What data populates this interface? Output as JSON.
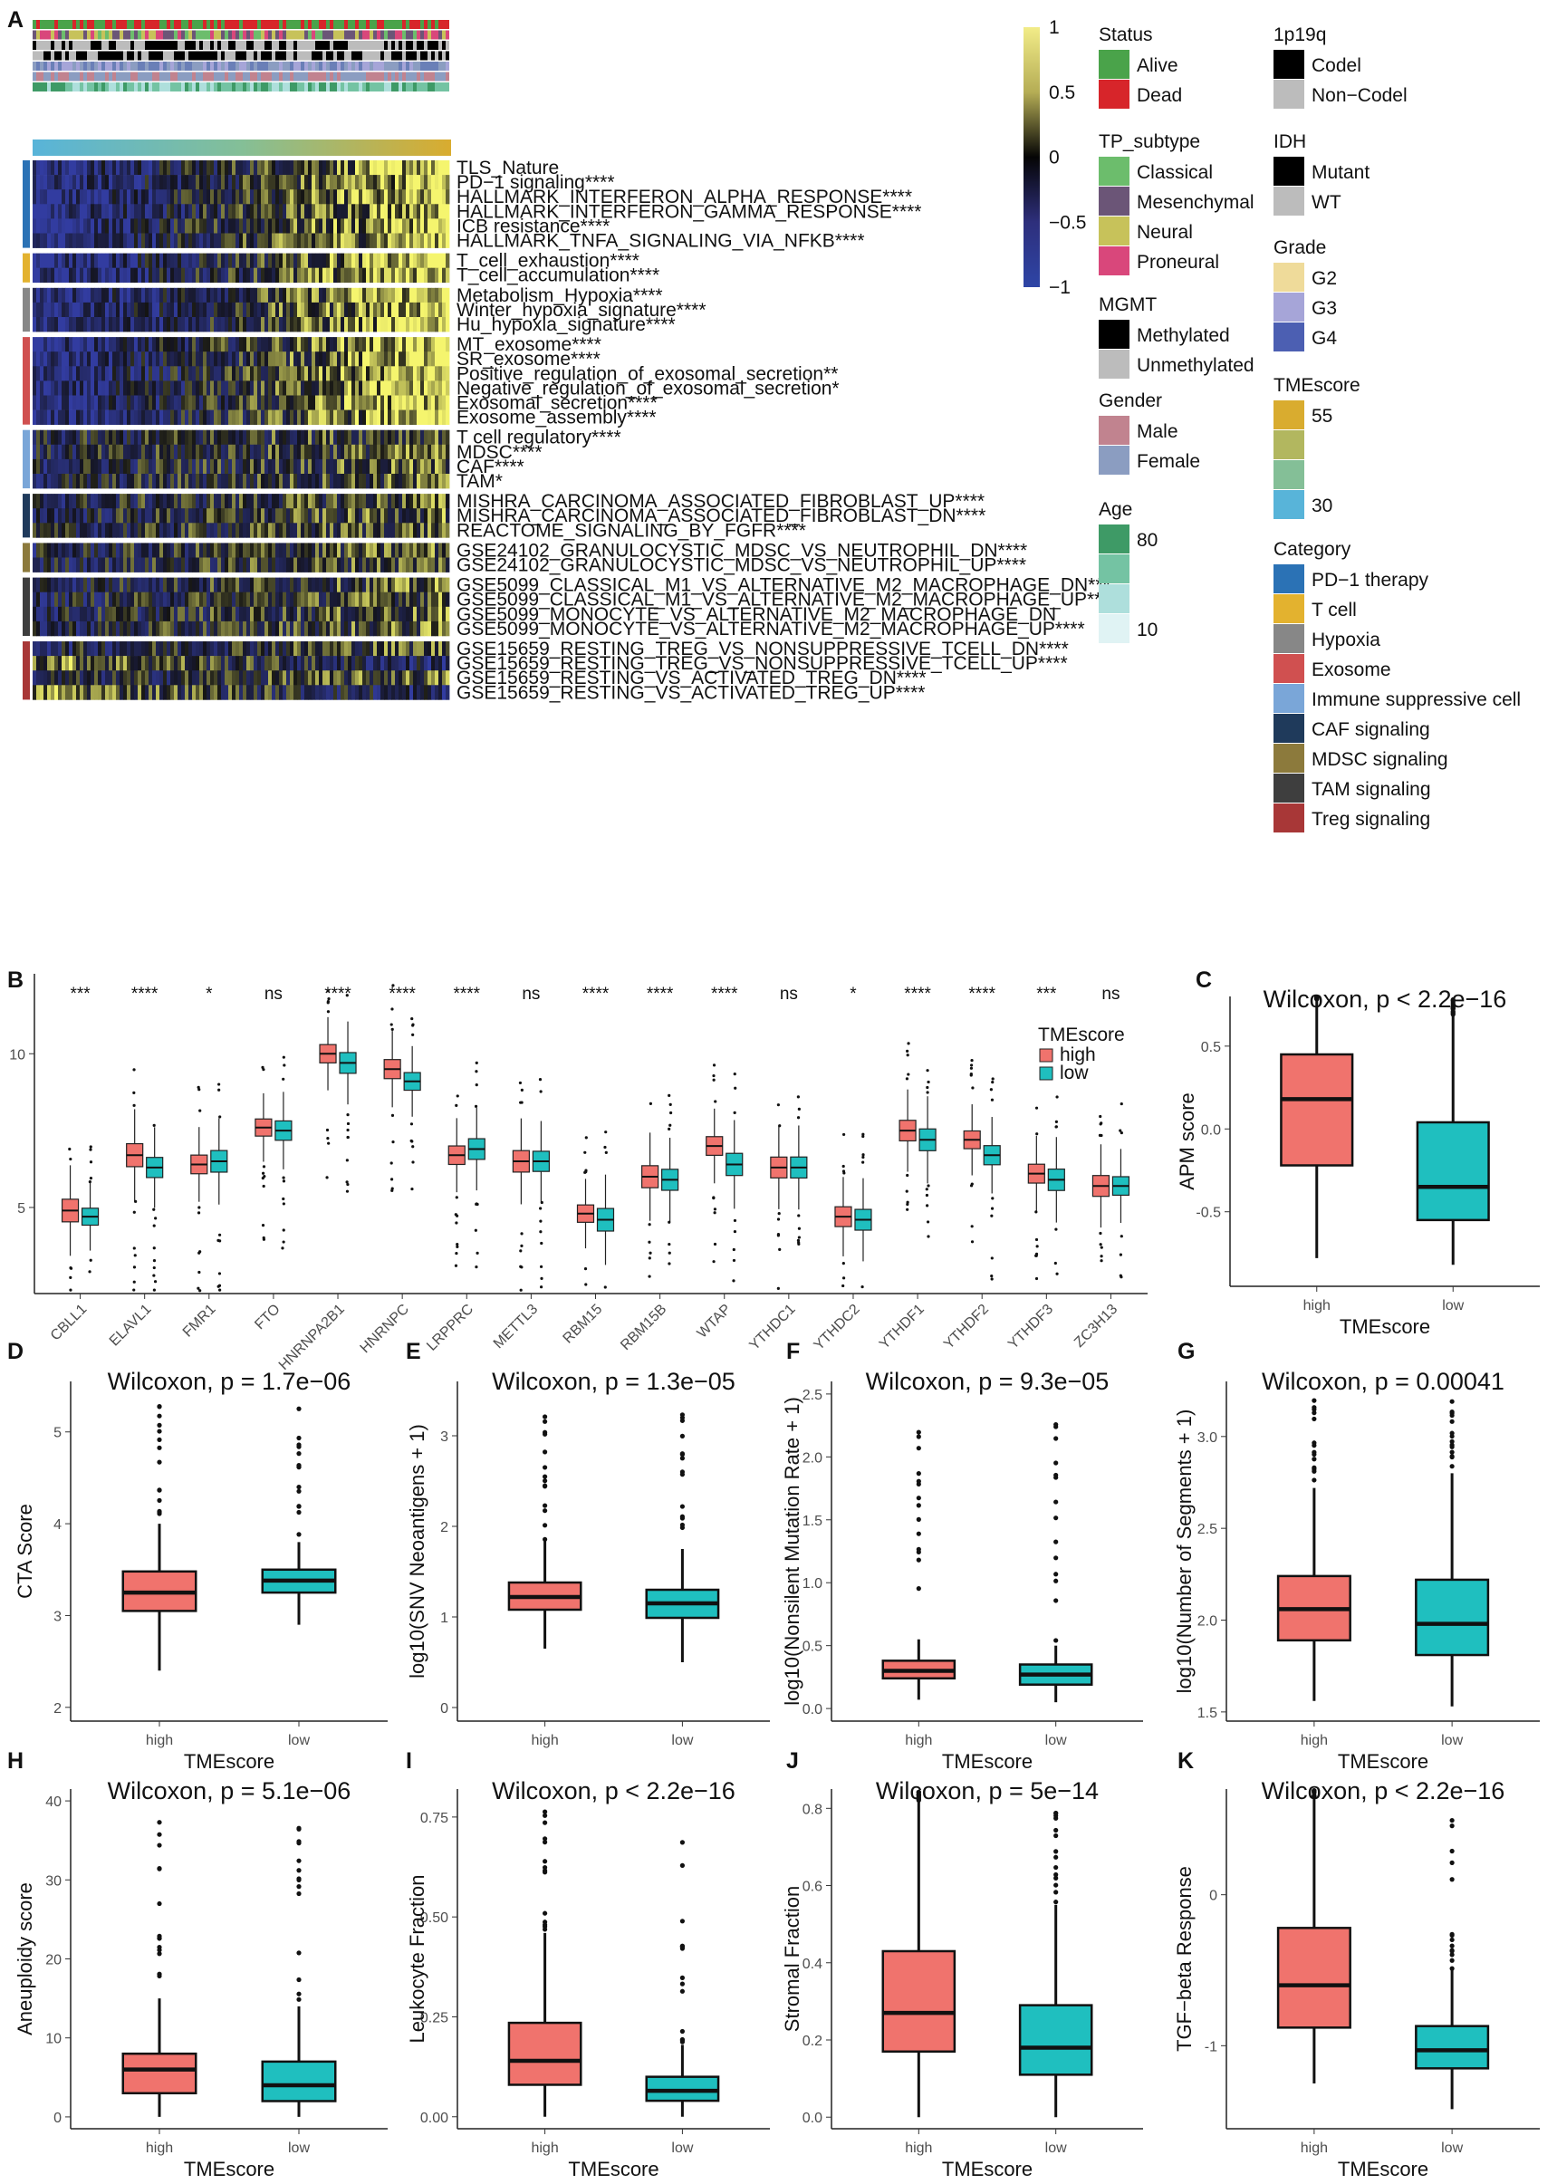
{
  "panel_labels": [
    "A",
    "B",
    "C",
    "D",
    "E",
    "F",
    "G",
    "H",
    "I",
    "J",
    "K"
  ],
  "heatmap": {
    "rows": [
      {
        "label": "TLS_Nature",
        "cat": 0
      },
      {
        "label": "PD−1 signaling****",
        "cat": 0
      },
      {
        "label": "HALLMARK_INTERFERON_ALPHA_RESPONSE****",
        "cat": 0
      },
      {
        "label": "HALLMARK_INTERFERON_GAMMA_RESPONSE****",
        "cat": 0
      },
      {
        "label": "ICB resistance****",
        "cat": 0
      },
      {
        "label": "HALLMARK_TNFA_SIGNALING_VIA_NFKB****",
        "cat": 0
      },
      {
        "label": "T_cell_exhaustion****",
        "cat": 1
      },
      {
        "label": "T_cell_accumulation****",
        "cat": 1
      },
      {
        "label": "Metabolism_Hypoxia****",
        "cat": 2
      },
      {
        "label": "Winter_hypoxia_signature****",
        "cat": 2
      },
      {
        "label": "Hu_hypoxia_signature****",
        "cat": 2
      },
      {
        "label": "MT_exosome****",
        "cat": 3
      },
      {
        "label": "SR_exosome****",
        "cat": 3
      },
      {
        "label": "Positive_regulation_of_exosomal_secretion**",
        "cat": 3
      },
      {
        "label": "Negative_regulation_of_exosomal_secretion*",
        "cat": 3
      },
      {
        "label": "Exosomal_secretion****",
        "cat": 3
      },
      {
        "label": "Exosome_assembly****",
        "cat": 3
      },
      {
        "label": "T cell regulatory****",
        "cat": 4
      },
      {
        "label": "MDSC****",
        "cat": 4
      },
      {
        "label": "CAF****",
        "cat": 4
      },
      {
        "label": "TAM*",
        "cat": 4
      },
      {
        "label": "MISHRA_CARCINOMA_ASSOCIATED_FIBROBLAST_UP****",
        "cat": 5
      },
      {
        "label": "MISHRA_CARCINOMA_ASSOCIATED_FIBROBLAST_DN****",
        "cat": 5
      },
      {
        "label": "REACTOME_SIGNALING_BY_FGFR****",
        "cat": 5
      },
      {
        "label": "GSE24102_GRANULOCYSTIC_MDSC_VS_NEUTROPHIL_DN****",
        "cat": 6
      },
      {
        "label": "GSE24102_GRANULOCYSTIC_MDSC_VS_NEUTROPHIL_UP****",
        "cat": 6
      },
      {
        "label": "GSE5099_CLASSICAL_M1_VS_ALTERNATIVE_M2_MACROPHAGE_DN***",
        "cat": 7
      },
      {
        "label": "GSE5099_CLASSICAL_M1_VS_ALTERNATIVE_M2_MACROPHAGE_UP****",
        "cat": 7
      },
      {
        "label": "GSE5099_MONOCYTE_VS_ALTERNATIVE_M2_MACROPHAGE_DN",
        "cat": 7
      },
      {
        "label": "GSE5099_MONOCYTE_VS_ALTERNATIVE_M2_MACROPHAGE_UP****",
        "cat": 7
      },
      {
        "label": "GSE15659_RESTING_TREG_VS_NONSUPPRESSIVE_TCELL_DN****",
        "cat": 8
      },
      {
        "label": "GSE15659_RESTING_TREG_VS_NONSUPPRESSIVE_TCELL_UP****",
        "cat": 8
      },
      {
        "label": "GSE15659_RESTING_VS_ACTIVATED_TREG_DN****",
        "cat": 8
      },
      {
        "label": "GSE15659_RESTING_VS_ACTIVATED_TREG_UP****",
        "cat": 8
      }
    ],
    "colorbar": {
      "ticks": [
        "1",
        "0.5",
        "0",
        "−0.5",
        "−1"
      ],
      "colors": [
        "#fffe8a",
        "#d9d25b",
        "#000000",
        "#2b2f8f",
        "#2e3c9e"
      ]
    },
    "legends": [
      {
        "title": "Status",
        "items": [
          {
            "label": "Alive",
            "color": "#4aa34a"
          },
          {
            "label": "Dead",
            "color": "#d7252a"
          }
        ]
      },
      {
        "title": "TP_subtype",
        "items": [
          {
            "label": "Classical",
            "color": "#6cbd6c"
          },
          {
            "label": "Mesenchymal",
            "color": "#6b5577"
          },
          {
            "label": "Neural",
            "color": "#c7c25a"
          },
          {
            "label": "Proneural",
            "color": "#d9477b"
          }
        ]
      },
      {
        "title": "MGMT",
        "items": [
          {
            "label": "Methylated",
            "color": "#000000"
          },
          {
            "label": "Unmethylated",
            "color": "#bcbcbc"
          }
        ]
      },
      {
        "title": "Gender",
        "items": [
          {
            "label": "Male",
            "color": "#c1838f"
          },
          {
            "label": "Female",
            "color": "#8b9dc1"
          }
        ]
      },
      {
        "title": "Age",
        "items": [
          {
            "label": "80",
            "color": "#3e9a66"
          },
          {
            "label": "",
            "color": "#74c3a3"
          },
          {
            "label": "",
            "color": "#aedfdc"
          },
          {
            "label": "10",
            "color": "#e0f3f4"
          }
        ]
      },
      {
        "title": "1p19q",
        "items": [
          {
            "label": "Codel",
            "color": "#000000"
          },
          {
            "label": "Non−Codel",
            "color": "#bcbcbc"
          }
        ]
      },
      {
        "title": "IDH",
        "items": [
          {
            "label": "Mutant",
            "color": "#000000"
          },
          {
            "label": "WT",
            "color": "#bcbcbc"
          }
        ]
      },
      {
        "title": "Grade",
        "items": [
          {
            "label": "G2",
            "color": "#efdb9a"
          },
          {
            "label": "G3",
            "color": "#a6a5d8"
          },
          {
            "label": "G4",
            "color": "#4c5fb2"
          }
        ]
      },
      {
        "title": "TMEscore",
        "items": [
          {
            "label": "55",
            "color": "#d9ac2f"
          },
          {
            "label": "",
            "color": "#b2b75f"
          },
          {
            "label": "",
            "color": "#84bf97"
          },
          {
            "label": "30",
            "color": "#58b4d9"
          }
        ]
      },
      {
        "title": "Category",
        "items": [
          {
            "label": "PD−1 therapy",
            "color": "#2b72b5"
          },
          {
            "label": "T cell",
            "color": "#e3b22f"
          },
          {
            "label": "Hypoxia",
            "color": "#878787"
          },
          {
            "label": "Exosome",
            "color": "#d05050"
          },
          {
            "label": "Immune suppressive cell",
            "color": "#7aa6d8"
          },
          {
            "label": "CAF signaling",
            "color": "#1f3a5b"
          },
          {
            "label": "MDSC signaling",
            "color": "#8c7a3c"
          },
          {
            "label": "TAM signaling",
            "color": "#3e3e3e"
          },
          {
            "label": "Treg signaling",
            "color": "#a83737"
          }
        ]
      }
    ]
  },
  "chart_data": [
    {
      "panel": "B",
      "type": "box",
      "categories": [
        "CBLL1",
        "ELAVL1",
        "FMR1",
        "FTO",
        "HNRNPA2B1",
        "HNRNPC",
        "LRPPRC",
        "METTL3",
        "RBM15",
        "RBM15B",
        "WTAP",
        "YTHDC1",
        "YTHDC2",
        "YTHDF1",
        "YTHDF2",
        "YTHDF3",
        "ZC3H13"
      ],
      "significance": [
        "***",
        "****",
        "*",
        "ns",
        "****",
        "****",
        "****",
        "ns",
        "****",
        "****",
        "****",
        "ns",
        "*",
        "****",
        "****",
        "***",
        "ns"
      ],
      "legend_title": "TMEscore",
      "series": [
        {
          "name": "high",
          "color": "#f0736d",
          "medians": [
            4.9,
            6.7,
            6.4,
            7.6,
            10.0,
            9.5,
            6.7,
            6.5,
            4.8,
            6.0,
            7.0,
            6.3,
            4.7,
            7.5,
            7.2,
            6.1,
            5.7
          ]
        },
        {
          "name": "low",
          "color": "#1fbfbf",
          "medians": [
            4.7,
            6.3,
            6.5,
            7.5,
            9.7,
            9.1,
            6.9,
            6.5,
            4.6,
            5.9,
            6.4,
            6.3,
            4.6,
            7.2,
            6.7,
            5.9,
            5.7
          ]
        }
      ],
      "yticks": [
        5,
        10
      ],
      "ylim": [
        2.2,
        12.6
      ]
    },
    {
      "panel": "C",
      "type": "box",
      "title": "Wilcoxon, p < 2.2e−16",
      "xlabel": "TMEscore",
      "ylabel": "APM score",
      "categories": [
        "high",
        "low"
      ],
      "boxes": [
        {
          "q1": -0.22,
          "median": 0.18,
          "q3": 0.45,
          "lo": -0.78,
          "hi": 0.78
        },
        {
          "q1": -0.55,
          "median": -0.35,
          "q3": 0.04,
          "lo": -0.82,
          "hi": 0.68
        }
      ],
      "yticks": [
        "0.5",
        "0.0",
        "-0.5"
      ],
      "ylim": [
        -0.95,
        0.8
      ]
    },
    {
      "panel": "D",
      "type": "box",
      "title": "Wilcoxon, p = 1.7e−06",
      "xlabel": "TMEscore",
      "ylabel": "CTA Score",
      "categories": [
        "high",
        "low"
      ],
      "boxes": [
        {
          "q1": 3.05,
          "median": 3.25,
          "q3": 3.48,
          "lo": 2.4,
          "hi": 4.0
        },
        {
          "q1": 3.25,
          "median": 3.38,
          "q3": 3.5,
          "lo": 2.9,
          "hi": 3.8
        }
      ],
      "yticks": [
        "5",
        "4",
        "3",
        "2"
      ],
      "ylim": [
        1.85,
        5.55
      ]
    },
    {
      "panel": "E",
      "type": "box",
      "title": "Wilcoxon, p = 1.3e−05",
      "xlabel": "",
      "ylabel": "log10(SNV Neoantigens + 1)",
      "categories": [
        "high",
        "low"
      ],
      "boxes": [
        {
          "q1": 1.08,
          "median": 1.22,
          "q3": 1.38,
          "lo": 0.65,
          "hi": 1.85
        },
        {
          "q1": 0.99,
          "median": 1.15,
          "q3": 1.3,
          "lo": 0.5,
          "hi": 1.75
        }
      ],
      "yticks": [
        "3",
        "2",
        "1",
        "0"
      ],
      "ylim": [
        -0.15,
        3.6
      ]
    },
    {
      "panel": "F",
      "type": "box",
      "title": "Wilcoxon, p = 9.3e−05",
      "xlabel": "TMEscore",
      "ylabel": "log10(Nonsilent Mutation Rate + 1)",
      "categories": [
        "high",
        "low"
      ],
      "boxes": [
        {
          "q1": 0.24,
          "median": 0.3,
          "q3": 0.38,
          "lo": 0.07,
          "hi": 0.55
        },
        {
          "q1": 0.19,
          "median": 0.27,
          "q3": 0.35,
          "lo": 0.05,
          "hi": 0.5
        }
      ],
      "yticks": [
        "2.5",
        "2.0",
        "1.5",
        "1.0",
        "0.5",
        "0.0"
      ],
      "ylim": [
        -0.1,
        2.6
      ]
    },
    {
      "panel": "G",
      "type": "box",
      "title": "Wilcoxon, p = 0.00041",
      "xlabel": "TMEscore",
      "ylabel": "log10(Number of Segments + 1)",
      "categories": [
        "high",
        "low"
      ],
      "boxes": [
        {
          "q1": 1.89,
          "median": 2.06,
          "q3": 2.24,
          "lo": 1.56,
          "hi": 2.72
        },
        {
          "q1": 1.81,
          "median": 1.98,
          "q3": 2.22,
          "lo": 1.53,
          "hi": 2.8
        }
      ],
      "yticks": [
        "3.0",
        "2.5",
        "2.0",
        "1.5"
      ],
      "ylim": [
        1.45,
        3.3
      ]
    },
    {
      "panel": "H",
      "type": "box",
      "title": "Wilcoxon, p = 5.1e−06",
      "xlabel": "TMEscore",
      "ylabel": "Aneuploidy score",
      "categories": [
        "high",
        "low"
      ],
      "boxes": [
        {
          "q1": 3,
          "median": 6,
          "q3": 8,
          "lo": 0,
          "hi": 15
        },
        {
          "q1": 2,
          "median": 4,
          "q3": 7,
          "lo": 0,
          "hi": 14
        }
      ],
      "yticks": [
        "40",
        "30",
        "20",
        "10",
        "0"
      ],
      "ylim": [
        -1.5,
        41.5
      ]
    },
    {
      "panel": "I",
      "type": "box",
      "title": "Wilcoxon, p < 2.2e−16",
      "xlabel": "TMEscore",
      "ylabel": "Leukocyte Fraction",
      "categories": [
        "high",
        "low"
      ],
      "boxes": [
        {
          "q1": 0.08,
          "median": 0.14,
          "q3": 0.235,
          "lo": 0.0,
          "hi": 0.46
        },
        {
          "q1": 0.04,
          "median": 0.065,
          "q3": 0.1,
          "lo": 0.0,
          "hi": 0.18
        }
      ],
      "yticks": [
        "0.75",
        "0.50",
        "0.25",
        "0.00"
      ],
      "ylim": [
        -0.03,
        0.82
      ]
    },
    {
      "panel": "J",
      "type": "box",
      "title": "Wilcoxon, p = 5e−14",
      "xlabel": "TMEscore",
      "ylabel": "Stromal Fraction",
      "categories": [
        "high",
        "low"
      ],
      "boxes": [
        {
          "q1": 0.17,
          "median": 0.27,
          "q3": 0.43,
          "lo": 0.0,
          "hi": 0.82
        },
        {
          "q1": 0.11,
          "median": 0.18,
          "q3": 0.29,
          "lo": 0.0,
          "hi": 0.55
        }
      ],
      "yticks": [
        "0.8",
        "0.6",
        "0.4",
        "0.2",
        "0.0"
      ],
      "ylim": [
        -0.03,
        0.85
      ]
    },
    {
      "panel": "K",
      "type": "box",
      "title": "Wilcoxon, p < 2.2e−16",
      "xlabel": "TMEscore",
      "ylabel": "TGF−beta Response",
      "categories": [
        "high",
        "low"
      ],
      "boxes": [
        {
          "q1": -0.88,
          "median": -0.6,
          "q3": -0.22,
          "lo": -1.25,
          "hi": 0.65
        },
        {
          "q1": -1.15,
          "median": -1.03,
          "q3": -0.87,
          "lo": -1.42,
          "hi": -0.5
        }
      ],
      "yticks": [
        "0",
        "-1"
      ],
      "ylim": [
        -1.55,
        0.7
      ]
    }
  ]
}
